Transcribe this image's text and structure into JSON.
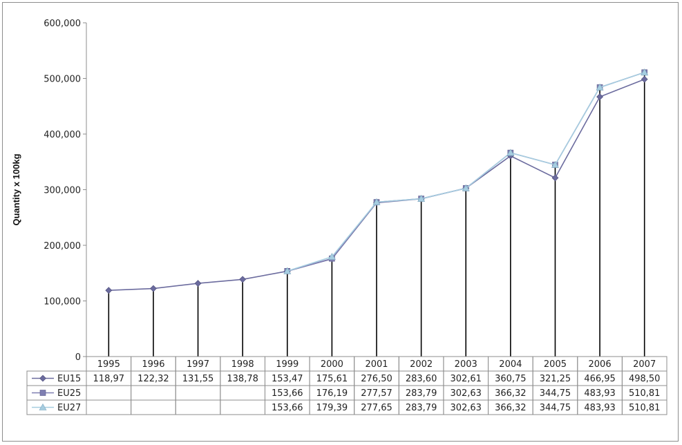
{
  "chart_data": {
    "type": "line",
    "ylabel": "Quantity x 100kg",
    "ylim": [
      0,
      600000
    ],
    "yticks": [
      0,
      100000,
      200000,
      300000,
      400000,
      500000,
      600000
    ],
    "ytick_labels": [
      "0",
      "100,000",
      "200,000",
      "300,000",
      "400,000",
      "500,000",
      "600,000"
    ],
    "categories": [
      "1995",
      "1996",
      "1997",
      "1998",
      "1999",
      "2000",
      "2001",
      "2002",
      "2003",
      "2004",
      "2005",
      "2006",
      "2007"
    ],
    "grid": false,
    "drop_lines": true,
    "data_table": true,
    "series": [
      {
        "name": "EU15",
        "marker": "diamond",
        "color": "#6b6b9e",
        "values": [
          118970,
          122320,
          131550,
          138780,
          153470,
          175610,
          276500,
          283600,
          302610,
          360750,
          321250,
          466950,
          498500
        ],
        "table_labels": [
          "118,97",
          "122,32",
          "131,55",
          "138,78",
          "153,47",
          "175,61",
          "276,50",
          "283,60",
          "302,61",
          "360,75",
          "321,25",
          "466,95",
          "498,50"
        ]
      },
      {
        "name": "EU25",
        "marker": "square",
        "color": "#7f7fb2",
        "values": [
          null,
          null,
          null,
          null,
          153660,
          176190,
          277570,
          283790,
          302630,
          366320,
          344750,
          483930,
          510810
        ],
        "table_labels": [
          "",
          "",
          "",
          "",
          "153,66",
          "176,19",
          "277,57",
          "283,79",
          "302,63",
          "366,32",
          "344,75",
          "483,93",
          "510,81"
        ]
      },
      {
        "name": "EU27",
        "marker": "triangle",
        "color": "#a6cde0",
        "values": [
          null,
          null,
          null,
          null,
          153660,
          179390,
          277650,
          283790,
          302630,
          366320,
          344750,
          483930,
          510810
        ],
        "table_labels": [
          "",
          "",
          "",
          "",
          "153,66",
          "179,39",
          "277,65",
          "283,79",
          "302,63",
          "366,32",
          "344,75",
          "483,93",
          "510,81"
        ]
      }
    ]
  }
}
